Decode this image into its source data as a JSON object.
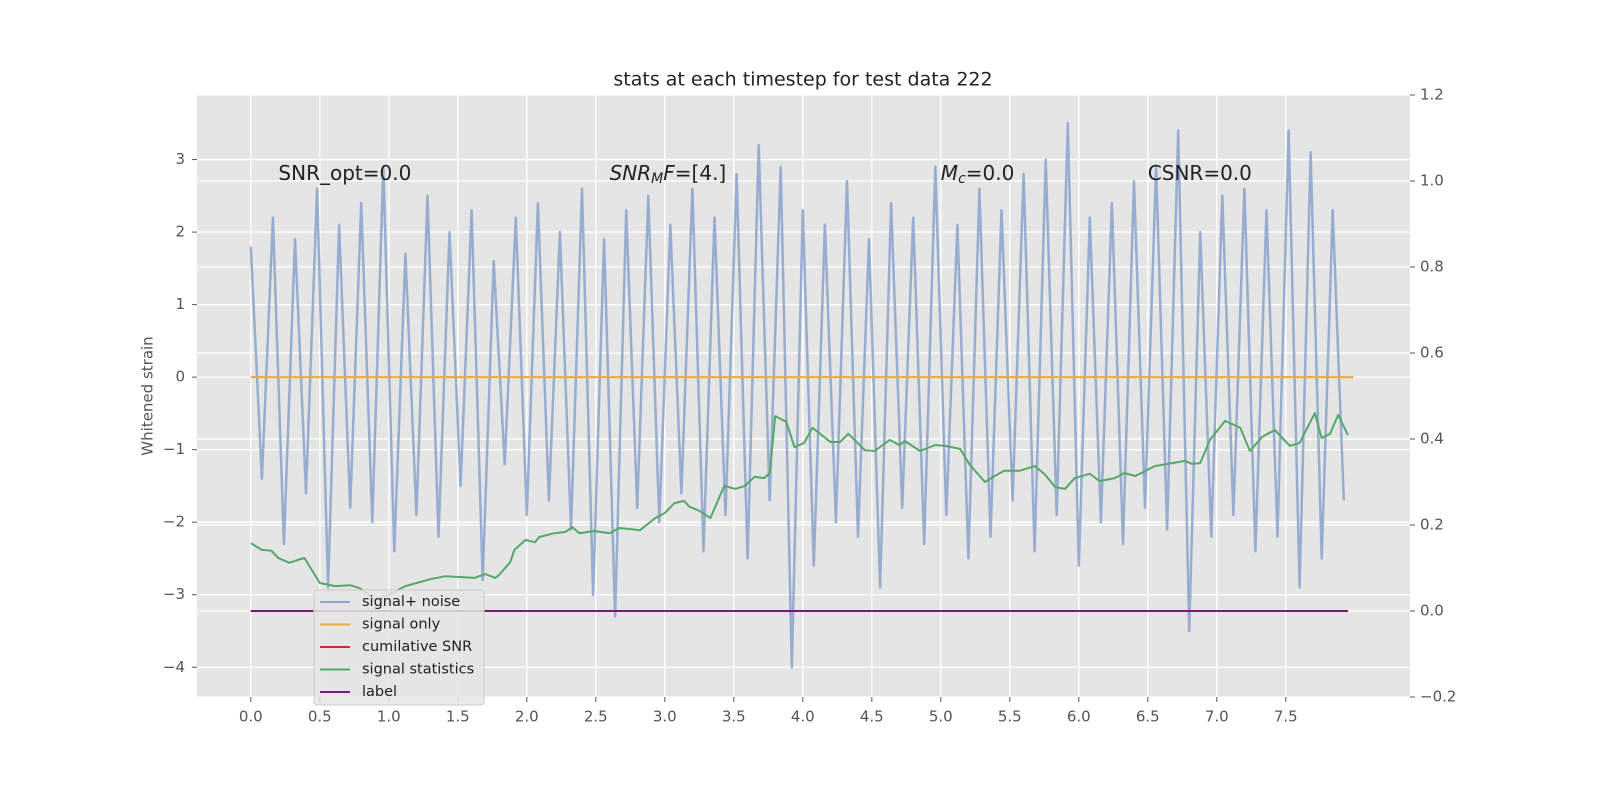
{
  "chart_data": {
    "type": "line",
    "title": "stats at each timestep for test data 222",
    "ylabel": "Whitened strain",
    "xlim": [
      -0.39,
      8.4
    ],
    "ylim": [
      -4.41,
      3.89
    ],
    "y2lim": [
      -0.2,
      1.2
    ],
    "grid": true,
    "xticks": [
      {
        "value": 0,
        "label": "0.0"
      },
      {
        "value": 0.5,
        "label": "0.5"
      },
      {
        "value": 1,
        "label": "1.0"
      },
      {
        "value": 1.5,
        "label": "1.5"
      },
      {
        "value": 2,
        "label": "2.0"
      },
      {
        "value": 2.5,
        "label": "2.5"
      },
      {
        "value": 3,
        "label": "3.0"
      },
      {
        "value": 3.5,
        "label": "3.5"
      },
      {
        "value": 4,
        "label": "4.0"
      },
      {
        "value": 4.5,
        "label": "4.5"
      },
      {
        "value": 5,
        "label": "5.0"
      },
      {
        "value": 5.5,
        "label": "5.5"
      },
      {
        "value": 6,
        "label": "6.0"
      },
      {
        "value": 6.5,
        "label": "6.5"
      },
      {
        "value": 7,
        "label": "7.0"
      },
      {
        "value": 7.5,
        "label": "7.5"
      }
    ],
    "yticks": [
      {
        "value": -4,
        "label": "−4"
      },
      {
        "value": -3,
        "label": "−3"
      },
      {
        "value": -2,
        "label": "−2"
      },
      {
        "value": -1,
        "label": "−1"
      },
      0,
      1,
      2,
      3
    ],
    "y2ticks": [
      {
        "value": -0.2,
        "label": "−0.2"
      },
      {
        "value": 0,
        "label": "0.0"
      },
      {
        "value": 0.2,
        "label": "0.2"
      },
      {
        "value": 0.4,
        "label": "0.4"
      },
      {
        "value": 0.6,
        "label": "0.6"
      },
      {
        "value": 0.8,
        "label": "0.8"
      },
      {
        "value": 1,
        "label": "1.0"
      },
      {
        "value": 1.2,
        "label": "1.2"
      }
    ],
    "annotations": [
      {
        "segments": [
          {
            "text": "SNR_opt=0.0",
            "style": "normal"
          }
        ]
      },
      {
        "segments": [
          {
            "text": "SNR",
            "style": "italic"
          },
          {
            "text": "M",
            "style": "italic-sub"
          },
          {
            "text": "F",
            "style": "italic"
          },
          {
            "text": "=[4.]",
            "style": "normal"
          }
        ]
      },
      {
        "segments": [
          {
            "text": "M",
            "style": "italic"
          },
          {
            "text": "c",
            "style": "italic-sub"
          },
          {
            "text": "=0.0",
            "style": "normal"
          }
        ]
      },
      {
        "segments": [
          {
            "text": "CSNR=0.0",
            "style": "normal"
          }
        ]
      }
    ],
    "series": [
      {
        "name": "signal+ noise",
        "color": "#8fa5cc",
        "axis": "y",
        "x": [
          0,
          0.08,
          0.16,
          0.24,
          0.32,
          0.4,
          0.48,
          0.56,
          0.64,
          0.72,
          0.8,
          0.88,
          0.96,
          1.04,
          1.12,
          1.2,
          1.28,
          1.36,
          1.44,
          1.52,
          1.6,
          1.68,
          1.76,
          1.84,
          1.92,
          2,
          2.08,
          2.16,
          2.24,
          2.32,
          2.4,
          2.48,
          2.56,
          2.64,
          2.72,
          2.8,
          2.88,
          2.96,
          3.04,
          3.12,
          3.2,
          3.28,
          3.36,
          3.44,
          3.52,
          3.6,
          3.68,
          3.76,
          3.84,
          3.92,
          4,
          4.08,
          4.16,
          4.24,
          4.32,
          4.4,
          4.48,
          4.56,
          4.64,
          4.72,
          4.8,
          4.88,
          4.96,
          5.04,
          5.12,
          5.2,
          5.28,
          5.36,
          5.44,
          5.52,
          5.6,
          5.68,
          5.76,
          5.84,
          5.92,
          6,
          6.08,
          6.16,
          6.24,
          6.32,
          6.4,
          6.48,
          6.56,
          6.64,
          6.72,
          6.8,
          6.88,
          6.96,
          7.04,
          7.12,
          7.2,
          7.28,
          7.36,
          7.44,
          7.52,
          7.6,
          7.68,
          7.76,
          7.84,
          7.92
        ],
        "values": [
          1.8,
          -1.4,
          2.2,
          -2.3,
          1.9,
          -1.6,
          2.6,
          -2.9,
          2.1,
          -1.8,
          2.4,
          -2.0,
          2.9,
          -2.4,
          1.7,
          -1.9,
          2.5,
          -2.2,
          2.0,
          -1.5,
          2.3,
          -2.8,
          1.6,
          -1.2,
          2.2,
          -1.9,
          2.4,
          -1.7,
          2.0,
          -2.1,
          2.6,
          -3.0,
          1.9,
          -3.3,
          2.3,
          -1.8,
          2.5,
          -2.0,
          2.1,
          -1.6,
          2.6,
          -2.4,
          2.2,
          -1.9,
          2.8,
          -2.5,
          3.2,
          -1.7,
          2.9,
          -4.0,
          2.3,
          -2.6,
          2.1,
          -2.0,
          2.7,
          -2.2,
          1.9,
          -2.9,
          2.4,
          -1.8,
          2.2,
          -2.3,
          2.9,
          -1.9,
          2.1,
          -2.5,
          2.6,
          -2.2,
          2.3,
          -1.7,
          2.8,
          -2.4,
          3.0,
          -1.9,
          3.5,
          -2.6,
          2.2,
          -2.0,
          2.4,
          -2.3,
          2.7,
          -1.8,
          2.9,
          -2.1,
          3.4,
          -3.5,
          2.0,
          -2.2,
          2.5,
          -1.9,
          2.6,
          -2.4,
          2.3,
          -2.2,
          3.4,
          -2.9,
          3.1,
          -2.5,
          2.3,
          -1.7
        ]
      },
      {
        "name": "signal only",
        "color": "#e5ae38",
        "axis": "y",
        "x": [
          0,
          7.99
        ],
        "values": [
          0,
          0
        ]
      },
      {
        "name": "cumilative SNR",
        "color": "#d62728",
        "axis": "y2",
        "x": [
          0,
          7.95
        ],
        "values": [
          0,
          0
        ]
      },
      {
        "name": "signal statistics",
        "color": "#55a868",
        "axis": "y2",
        "x": [
          0,
          0.08,
          0.15,
          0.2,
          0.28,
          0.36,
          0.39,
          0.5,
          0.61,
          0.72,
          0.79,
          0.9,
          1.01,
          1.12,
          1.3,
          1.41,
          1.51,
          1.62,
          1.7,
          1.77,
          1.8,
          1.88,
          1.91,
          1.99,
          2.06,
          2.09,
          2.2,
          2.28,
          2.33,
          2.38,
          2.49,
          2.6,
          2.67,
          2.82,
          2.93,
          3.0,
          3.07,
          3.14,
          3.18,
          3.25,
          3.33,
          3.43,
          3.51,
          3.58,
          3.65,
          3.72,
          3.76,
          3.8,
          3.88,
          3.94,
          4.01,
          4.07,
          4.2,
          4.27,
          4.33,
          4.45,
          4.52,
          4.63,
          4.7,
          4.74,
          4.85,
          4.96,
          5.03,
          5.14,
          5.21,
          5.32,
          5.39,
          5.46,
          5.57,
          5.68,
          5.75,
          5.83,
          5.9,
          5.97,
          6.08,
          6.15,
          6.26,
          6.33,
          6.41,
          6.55,
          6.77,
          6.82,
          6.88,
          6.95,
          7.06,
          7.17,
          7.24,
          7.33,
          7.42,
          7.53,
          7.6,
          7.71,
          7.76,
          7.82,
          7.88,
          7.95
        ],
        "values": [
          0.158,
          0.142,
          0.14,
          0.123,
          0.112,
          0.121,
          0.123,
          0.065,
          0.058,
          0.06,
          0.053,
          0.026,
          0.04,
          0.058,
          0.074,
          0.081,
          0.079,
          0.077,
          0.086,
          0.077,
          0.084,
          0.114,
          0.142,
          0.165,
          0.16,
          0.172,
          0.181,
          0.184,
          0.195,
          0.181,
          0.186,
          0.181,
          0.193,
          0.188,
          0.216,
          0.228,
          0.251,
          0.256,
          0.242,
          0.233,
          0.216,
          0.291,
          0.284,
          0.291,
          0.312,
          0.309,
          0.321,
          0.453,
          0.44,
          0.381,
          0.391,
          0.426,
          0.393,
          0.393,
          0.412,
          0.374,
          0.372,
          0.398,
          0.386,
          0.395,
          0.372,
          0.386,
          0.384,
          0.377,
          0.34,
          0.3,
          0.314,
          0.326,
          0.326,
          0.337,
          0.319,
          0.288,
          0.284,
          0.309,
          0.319,
          0.302,
          0.309,
          0.321,
          0.314,
          0.337,
          0.349,
          0.342,
          0.344,
          0.398,
          0.442,
          0.426,
          0.372,
          0.405,
          0.421,
          0.384,
          0.391,
          0.46,
          0.402,
          0.412,
          0.456,
          0.409
        ]
      },
      {
        "name": "label",
        "color": "#7b1a7b",
        "axis": "y2",
        "x": [
          0,
          7.95
        ],
        "values": [
          0,
          0
        ]
      }
    ]
  }
}
